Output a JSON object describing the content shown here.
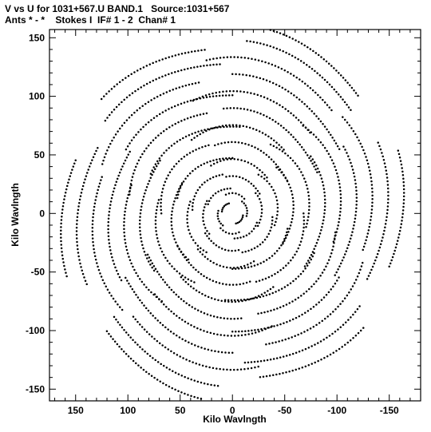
{
  "title_line1": "V vs U for 1031+567.U BAND.1   Source:1031+567",
  "title_line2": "Ants * - *    Stokes I  IF# 1 - 2  Chan# 1",
  "chart_data": {
    "type": "scatter",
    "title": "V vs U for 1031+567.U BAND.1   Source:1031+567",
    "subtitle": "Ants * - *    Stokes I  IF# 1 - 2  Chan# 1",
    "xlabel": "Kilo Wavlngth",
    "ylabel": "Kilo Wavlngth",
    "xlim": [
      175,
      -180
    ],
    "ylim": [
      -160,
      157
    ],
    "x_reversed": true,
    "grid": false,
    "marker": "small filled dots",
    "x_ticks": [
      150,
      100,
      50,
      0,
      -50,
      -100,
      -150
    ],
    "x_tick_labels": [
      "150",
      "100",
      "50",
      "0",
      "-50",
      "-100",
      "-150"
    ],
    "y_ticks": [
      150,
      100,
      50,
      0,
      -50,
      -100,
      -150
    ],
    "y_tick_labels": [
      "150",
      "100",
      "50",
      "0",
      "-50",
      "-100",
      "-150"
    ],
    "series": [
      {
        "description": "uv-coverage tracks with point-symmetric pairs (u,v) and (-u,-v); arcs of varying radius forming a six-armed pinwheel",
        "tracks": [
          {
            "radius": 10,
            "start_angle": 10,
            "end_angle": 70
          },
          {
            "radius": 14,
            "start_angle": 130,
            "end_angle": 190
          },
          {
            "radius": 18,
            "start_angle": 250,
            "end_angle": 310
          },
          {
            "radius": 24,
            "start_angle": 20,
            "end_angle": 85
          },
          {
            "radius": 28,
            "start_angle": 140,
            "end_angle": 205
          },
          {
            "radius": 33,
            "start_angle": 260,
            "end_angle": 325
          },
          {
            "radius": 38,
            "start_angle": 5,
            "end_angle": 75
          },
          {
            "radius": 43,
            "start_angle": 125,
            "end_angle": 195
          },
          {
            "radius": 48,
            "start_angle": 245,
            "end_angle": 315
          },
          {
            "radius": 53,
            "start_angle": 15,
            "end_angle": 90
          },
          {
            "radius": 58,
            "start_angle": 135,
            "end_angle": 210
          },
          {
            "radius": 63,
            "start_angle": 255,
            "end_angle": 330
          },
          {
            "radius": 68,
            "start_angle": 0,
            "end_angle": 70
          },
          {
            "radius": 73,
            "start_angle": 120,
            "end_angle": 190
          },
          {
            "radius": 78,
            "start_angle": 240,
            "end_angle": 310
          },
          {
            "radius": 83,
            "start_angle": 25,
            "end_angle": 95
          },
          {
            "radius": 88,
            "start_angle": 145,
            "end_angle": 215
          },
          {
            "radius": 93,
            "start_angle": 265,
            "end_angle": 335
          },
          {
            "radius": 98,
            "start_angle": 10,
            "end_angle": 75
          },
          {
            "radius": 103,
            "start_angle": 130,
            "end_angle": 195
          },
          {
            "radius": 108,
            "start_angle": 250,
            "end_angle": 315
          },
          {
            "radius": 113,
            "start_angle": 30,
            "end_angle": 90
          },
          {
            "radius": 118,
            "start_angle": 150,
            "end_angle": 210
          },
          {
            "radius": 123,
            "start_angle": 270,
            "end_angle": 330
          },
          {
            "radius": 128,
            "start_angle": 20,
            "end_angle": 75
          },
          {
            "radius": 133,
            "start_angle": 140,
            "end_angle": 195
          },
          {
            "radius": 138,
            "start_angle": 260,
            "end_angle": 315
          },
          {
            "radius": 143,
            "start_angle": 35,
            "end_angle": 85
          },
          {
            "radius": 148,
            "start_angle": 155,
            "end_angle": 205
          },
          {
            "radius": 153,
            "start_angle": 275,
            "end_angle": 320
          },
          {
            "radius": 158,
            "start_angle": 40,
            "end_angle": 80
          },
          {
            "radius": 163,
            "start_angle": 160,
            "end_angle": 198
          },
          {
            "radius": 167,
            "start_angle": 280,
            "end_angle": 318
          }
        ]
      }
    ]
  }
}
